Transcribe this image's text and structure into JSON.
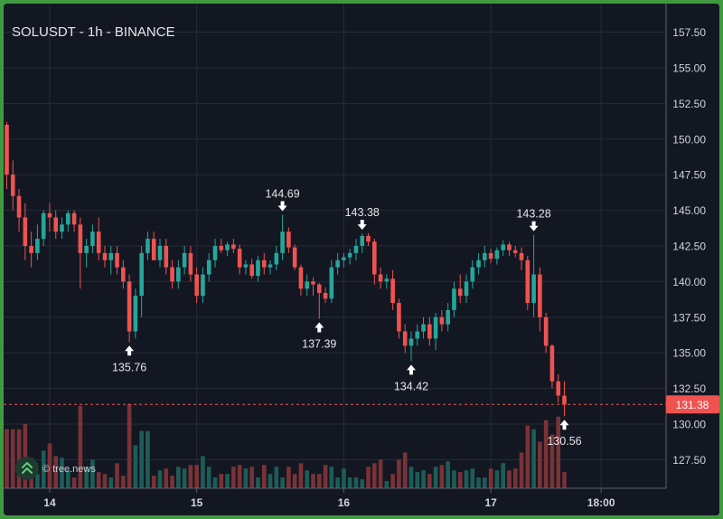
{
  "chart_data": {
    "type": "candlestick",
    "title": "SOLUSDT - 1h - BINANCE",
    "ylim": [
      125.5,
      159.5
    ],
    "yticks": [
      "127.50",
      "130.00",
      "132.50",
      "135.00",
      "137.50",
      "140.00",
      "142.50",
      "145.00",
      "147.50",
      "150.00",
      "152.50",
      "155.00",
      "157.50"
    ],
    "xticks": [
      {
        "label": "14",
        "index": 7
      },
      {
        "label": "15",
        "index": 31
      },
      {
        "label": "16",
        "index": 55
      },
      {
        "label": "17",
        "index": 79
      },
      {
        "label": "18:00",
        "index": 97
      }
    ],
    "last_price": "131.38",
    "last_price_value": 131.38,
    "candles": [
      [
        151.0,
        151.2,
        146.5,
        147.5
      ],
      [
        147.5,
        148.5,
        145.0,
        146.0
      ],
      [
        146.0,
        146.5,
        143.5,
        144.5
      ],
      [
        144.5,
        145.5,
        141.5,
        142.5
      ],
      [
        142.5,
        143.5,
        141.0,
        142.0
      ],
      [
        142.0,
        144.0,
        141.5,
        143.0
      ],
      [
        143.0,
        145.0,
        142.5,
        144.8
      ],
      [
        144.8,
        145.5,
        143.5,
        144.5
      ],
      [
        144.5,
        145.0,
        143.0,
        143.5
      ],
      [
        143.5,
        144.5,
        143.0,
        144.0
      ],
      [
        144.0,
        145.0,
        143.5,
        144.8
      ],
      [
        144.8,
        145.0,
        143.5,
        144.0
      ],
      [
        144.0,
        144.5,
        139.5,
        142.0
      ],
      [
        142.0,
        143.0,
        141.0,
        142.5
      ],
      [
        142.5,
        144.0,
        142.0,
        143.5
      ],
      [
        143.5,
        144.5,
        141.5,
        142.0
      ],
      [
        142.0,
        142.5,
        141.0,
        141.5
      ],
      [
        141.5,
        142.5,
        140.5,
        142.0
      ],
      [
        142.0,
        142.5,
        140.5,
        141.0
      ],
      [
        141.0,
        141.5,
        139.5,
        140.0
      ],
      [
        140.0,
        140.5,
        135.76,
        136.5
      ],
      [
        136.5,
        139.5,
        136.0,
        139.0
      ],
      [
        139.0,
        142.5,
        137.5,
        142.0
      ],
      [
        142.0,
        143.5,
        141.5,
        143.0
      ],
      [
        143.0,
        143.5,
        141.5,
        141.5
      ],
      [
        141.5,
        143.0,
        141.0,
        142.5
      ],
      [
        142.5,
        143.0,
        140.5,
        141.0
      ],
      [
        141.0,
        141.5,
        139.5,
        140.0
      ],
      [
        140.0,
        141.5,
        139.5,
        141.0
      ],
      [
        141.0,
        142.5,
        140.5,
        142.0
      ],
      [
        142.0,
        142.5,
        140.0,
        140.5
      ],
      [
        140.5,
        141.0,
        138.5,
        139.0
      ],
      [
        139.0,
        141.0,
        138.5,
        140.5
      ],
      [
        140.5,
        142.0,
        140.0,
        141.5
      ],
      [
        141.5,
        143.0,
        141.0,
        142.5
      ],
      [
        142.5,
        143.0,
        142.0,
        142.2
      ],
      [
        142.2,
        142.8,
        141.8,
        142.6
      ],
      [
        142.6,
        143.0,
        142.0,
        142.3
      ],
      [
        142.3,
        142.6,
        140.5,
        141.0
      ],
      [
        141.0,
        141.5,
        140.5,
        141.2
      ],
      [
        141.2,
        141.6,
        140.2,
        140.4
      ],
      [
        140.4,
        141.8,
        140.0,
        141.5
      ],
      [
        141.5,
        142.0,
        140.5,
        141.0
      ],
      [
        141.0,
        141.5,
        140.5,
        141.2
      ],
      [
        141.2,
        142.5,
        140.8,
        142.0
      ],
      [
        142.0,
        144.69,
        141.5,
        143.5
      ],
      [
        143.5,
        143.8,
        142.0,
        142.4
      ],
      [
        142.4,
        142.6,
        140.8,
        141.0
      ],
      [
        141.0,
        141.2,
        139.0,
        139.5
      ],
      [
        139.5,
        140.5,
        139.0,
        140.0
      ],
      [
        140.0,
        140.3,
        139.0,
        139.8
      ],
      [
        139.8,
        139.9,
        137.39,
        139.2
      ],
      [
        139.2,
        139.6,
        138.5,
        138.8
      ],
      [
        138.8,
        141.5,
        138.5,
        141.0
      ],
      [
        141.0,
        142.0,
        140.5,
        141.5
      ],
      [
        141.5,
        142.0,
        141.0,
        141.7
      ],
      [
        141.7,
        142.3,
        141.2,
        142.0
      ],
      [
        142.0,
        143.0,
        141.5,
        142.5
      ],
      [
        142.5,
        143.38,
        142.0,
        143.2
      ],
      [
        143.2,
        143.4,
        142.5,
        142.8
      ],
      [
        142.8,
        143.0,
        139.8,
        140.5
      ],
      [
        140.5,
        141.0,
        139.5,
        140.0
      ],
      [
        140.0,
        140.5,
        139.5,
        140.2
      ],
      [
        140.2,
        140.8,
        138.0,
        138.5
      ],
      [
        138.5,
        138.8,
        136.0,
        136.5
      ],
      [
        136.5,
        137.0,
        135.0,
        135.5
      ],
      [
        135.5,
        136.5,
        134.42,
        136.0
      ],
      [
        136.0,
        137.0,
        135.5,
        136.5
      ],
      [
        136.5,
        137.5,
        136.0,
        137.0
      ],
      [
        137.0,
        137.5,
        135.5,
        136.0
      ],
      [
        136.0,
        137.8,
        135.2,
        137.5
      ],
      [
        137.5,
        138.0,
        136.5,
        137.0
      ],
      [
        137.0,
        138.5,
        136.5,
        138.0
      ],
      [
        138.0,
        140.0,
        137.5,
        139.5
      ],
      [
        139.5,
        140.5,
        138.5,
        139.0
      ],
      [
        139.0,
        140.5,
        138.5,
        140.0
      ],
      [
        140.0,
        141.5,
        139.5,
        141.0
      ],
      [
        141.0,
        142.0,
        140.5,
        141.5
      ],
      [
        141.5,
        142.5,
        141.0,
        142.0
      ],
      [
        142.0,
        142.3,
        141.3,
        141.6
      ],
      [
        141.6,
        142.4,
        141.2,
        142.2
      ],
      [
        142.2,
        142.9,
        141.8,
        142.6
      ],
      [
        142.6,
        142.8,
        141.8,
        142.2
      ],
      [
        142.2,
        142.5,
        141.7,
        142.0
      ],
      [
        142.0,
        142.4,
        140.8,
        141.5
      ],
      [
        141.5,
        141.8,
        138.0,
        138.5
      ],
      [
        138.5,
        143.28,
        137.5,
        140.5
      ],
      [
        140.5,
        141.0,
        136.5,
        137.5
      ],
      [
        137.5,
        137.8,
        135.0,
        135.5
      ],
      [
        135.5,
        135.6,
        132.5,
        133.0
      ],
      [
        133.0,
        133.5,
        131.5,
        132.0
      ],
      [
        132.0,
        133.0,
        130.56,
        131.38
      ]
    ],
    "volumes": [
      33,
      33,
      33,
      36,
      17,
      8,
      21,
      25,
      18,
      17,
      10,
      6,
      46,
      12,
      16,
      9,
      8,
      6,
      14,
      7,
      47,
      24,
      32,
      32,
      7,
      10,
      11,
      7,
      12,
      11,
      13,
      13,
      18,
      12,
      6,
      8,
      8,
      12,
      13,
      11,
      12,
      6,
      13,
      8,
      12,
      6,
      12,
      8,
      14,
      10,
      8,
      8,
      13,
      12,
      6,
      11,
      6,
      6,
      5,
      12,
      14,
      16,
      4,
      8,
      16,
      20,
      12,
      9,
      10,
      8,
      12,
      13,
      15,
      10,
      9,
      10,
      11,
      6,
      6,
      11,
      10,
      14,
      10,
      11,
      20,
      35,
      33,
      26,
      38,
      30,
      40,
      9
    ],
    "annotations": [
      {
        "label": "135.76",
        "index": 20,
        "price": 135.76,
        "position": "below"
      },
      {
        "label": "144.69",
        "index": 45,
        "price": 144.69,
        "position": "above"
      },
      {
        "label": "137.39",
        "index": 51,
        "price": 137.39,
        "position": "below"
      },
      {
        "label": "143.38",
        "index": 58,
        "price": 143.38,
        "position": "above"
      },
      {
        "label": "134.42",
        "index": 66,
        "price": 134.42,
        "position": "below"
      },
      {
        "label": "143.28",
        "index": 86,
        "price": 143.28,
        "position": "above"
      },
      {
        "label": "130.56",
        "index": 91,
        "price": 130.56,
        "position": "below"
      }
    ],
    "colors": {
      "up": "#26a69a",
      "down": "#ef5350",
      "up_volume": "#1d5d58",
      "down_volume": "#7a3236",
      "background": "#131722",
      "grid": "#262b37",
      "last_price": "#ef5350",
      "frame": "#3f9a3f"
    }
  },
  "watermark": {
    "text": "tree.news",
    "icon": "double-chevron-up-icon"
  }
}
